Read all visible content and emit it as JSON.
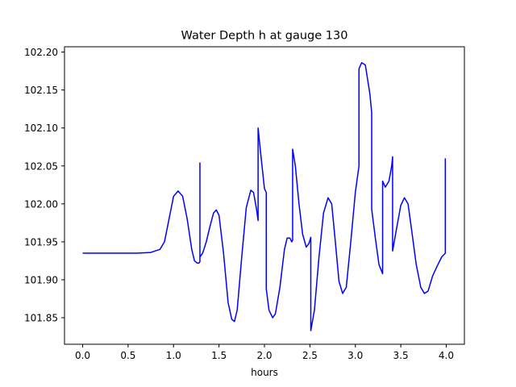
{
  "chart_data": {
    "type": "line",
    "title": "Water Depth h at gauge 130",
    "xlabel": "hours",
    "ylabel": "",
    "xlim": [
      -0.2,
      4.2
    ],
    "ylim": [
      101.815,
      102.207
    ],
    "xticks": [
      0.0,
      0.5,
      1.0,
      1.5,
      2.0,
      2.5,
      3.0,
      3.5,
      4.0
    ],
    "xtick_labels": [
      "0.0",
      "0.5",
      "1.0",
      "1.5",
      "2.0",
      "2.5",
      "3.0",
      "3.5",
      "4.0"
    ],
    "yticks": [
      101.85,
      101.9,
      101.95,
      102.0,
      102.05,
      102.1,
      102.15,
      102.2
    ],
    "ytick_labels": [
      "101.85",
      "101.90",
      "101.95",
      "102.00",
      "102.05",
      "102.10",
      "102.15",
      "102.20"
    ],
    "grid": false,
    "series": [
      {
        "name": "",
        "color": "#0000ff",
        "points": [
          [
            0.0,
            101.935
          ],
          [
            0.3,
            101.935
          ],
          [
            0.6,
            101.935
          ],
          [
            0.75,
            101.936
          ],
          [
            0.85,
            101.94
          ],
          [
            0.9,
            101.95
          ],
          [
            0.95,
            101.98
          ],
          [
            1.0,
            102.01
          ],
          [
            1.05,
            102.017
          ],
          [
            1.1,
            102.01
          ],
          [
            1.15,
            101.98
          ],
          [
            1.2,
            101.94
          ],
          [
            1.23,
            101.925
          ],
          [
            1.26,
            101.922
          ],
          [
            1.28,
            101.922
          ],
          [
            1.29,
            101.924
          ],
          [
            1.29,
            102.054
          ],
          [
            1.29,
            101.93
          ],
          [
            1.32,
            101.935
          ],
          [
            1.36,
            101.95
          ],
          [
            1.4,
            101.97
          ],
          [
            1.44,
            101.988
          ],
          [
            1.47,
            101.992
          ],
          [
            1.5,
            101.985
          ],
          [
            1.55,
            101.935
          ],
          [
            1.6,
            101.87
          ],
          [
            1.64,
            101.848
          ],
          [
            1.67,
            101.845
          ],
          [
            1.7,
            101.86
          ],
          [
            1.75,
            101.93
          ],
          [
            1.8,
            101.995
          ],
          [
            1.85,
            102.018
          ],
          [
            1.88,
            102.015
          ],
          [
            1.91,
            101.995
          ],
          [
            1.93,
            101.978
          ],
          [
            1.93,
            102.1
          ],
          [
            1.96,
            102.065
          ],
          [
            2.0,
            102.02
          ],
          [
            2.02,
            102.015
          ],
          [
            2.02,
            101.888
          ],
          [
            2.05,
            101.86
          ],
          [
            2.09,
            101.85
          ],
          [
            2.12,
            101.855
          ],
          [
            2.17,
            101.89
          ],
          [
            2.22,
            101.94
          ],
          [
            2.25,
            101.955
          ],
          [
            2.28,
            101.955
          ],
          [
            2.3,
            101.95
          ],
          [
            2.31,
            101.952
          ],
          [
            2.31,
            102.072
          ],
          [
            2.34,
            102.05
          ],
          [
            2.38,
            102.0
          ],
          [
            2.42,
            101.96
          ],
          [
            2.46,
            101.943
          ],
          [
            2.49,
            101.948
          ],
          [
            2.51,
            101.956
          ],
          [
            2.51,
            101.833
          ],
          [
            2.55,
            101.86
          ],
          [
            2.6,
            101.93
          ],
          [
            2.65,
            101.988
          ],
          [
            2.7,
            102.008
          ],
          [
            2.74,
            102.0
          ],
          [
            2.78,
            101.95
          ],
          [
            2.82,
            101.898
          ],
          [
            2.86,
            101.882
          ],
          [
            2.9,
            101.89
          ],
          [
            2.95,
            101.95
          ],
          [
            3.0,
            102.015
          ],
          [
            3.04,
            102.05
          ],
          [
            3.04,
            102.178
          ],
          [
            3.07,
            102.186
          ],
          [
            3.11,
            102.183
          ],
          [
            3.16,
            102.145
          ],
          [
            3.18,
            102.12
          ],
          [
            3.18,
            101.993
          ],
          [
            3.22,
            101.955
          ],
          [
            3.26,
            101.92
          ],
          [
            3.3,
            101.908
          ],
          [
            3.3,
            102.03
          ],
          [
            3.33,
            102.022
          ],
          [
            3.37,
            102.03
          ],
          [
            3.4,
            102.05
          ],
          [
            3.41,
            102.062
          ],
          [
            3.41,
            101.938
          ],
          [
            3.45,
            101.965
          ],
          [
            3.5,
            101.998
          ],
          [
            3.54,
            102.008
          ],
          [
            3.58,
            102.0
          ],
          [
            3.62,
            101.965
          ],
          [
            3.67,
            101.92
          ],
          [
            3.72,
            101.89
          ],
          [
            3.76,
            101.882
          ],
          [
            3.8,
            101.885
          ],
          [
            3.85,
            101.905
          ],
          [
            3.9,
            101.918
          ],
          [
            3.95,
            101.93
          ],
          [
            3.99,
            101.935
          ],
          [
            3.99,
            102.06
          ]
        ]
      }
    ]
  }
}
